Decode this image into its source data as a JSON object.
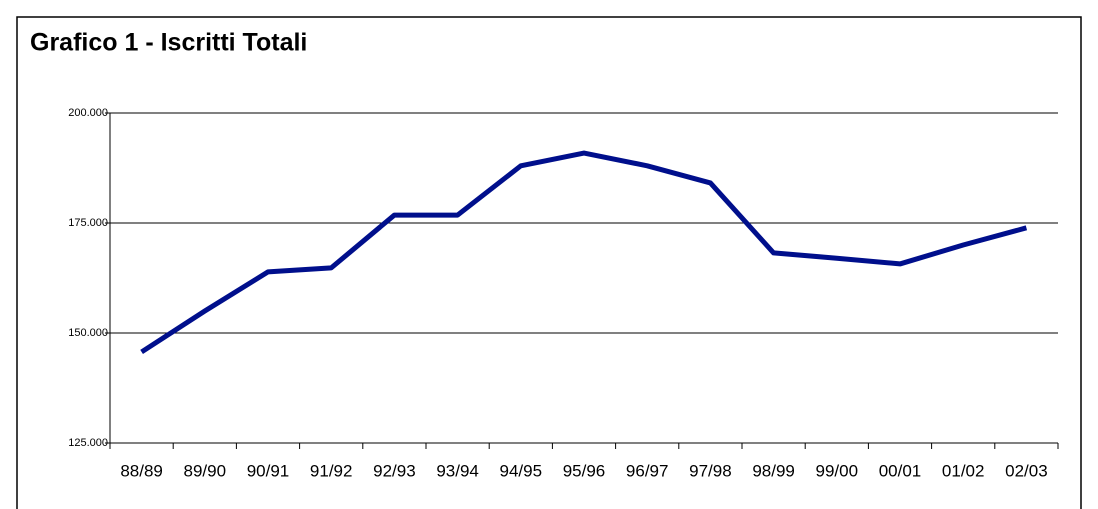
{
  "chart_data": {
    "type": "line",
    "title": "Grafico 1 - Iscritti Totali",
    "categories": [
      "88/89",
      "89/90",
      "90/91",
      "91/92",
      "92/93",
      "93/94",
      "94/95",
      "95/96",
      "96/97",
      "97/98",
      "98/99",
      "99/00",
      "00/01",
      "01/02",
      "02/03"
    ],
    "series": [
      {
        "name": "Iscritti",
        "color": "#000f8c",
        "values": [
          145700,
          155000,
          163900,
          164800,
          176800,
          176800,
          188000,
          190900,
          188000,
          184100,
          168200,
          167000,
          165700,
          170000,
          173900
        ]
      }
    ],
    "ylim": [
      125000,
      200000
    ],
    "yticks": [
      {
        "value": 125000,
        "label": "125.000"
      },
      {
        "value": 150000,
        "label": "150.000"
      },
      {
        "value": 175000,
        "label": "175.000"
      },
      {
        "value": 200000,
        "label": "200.000"
      }
    ],
    "grid": true
  }
}
